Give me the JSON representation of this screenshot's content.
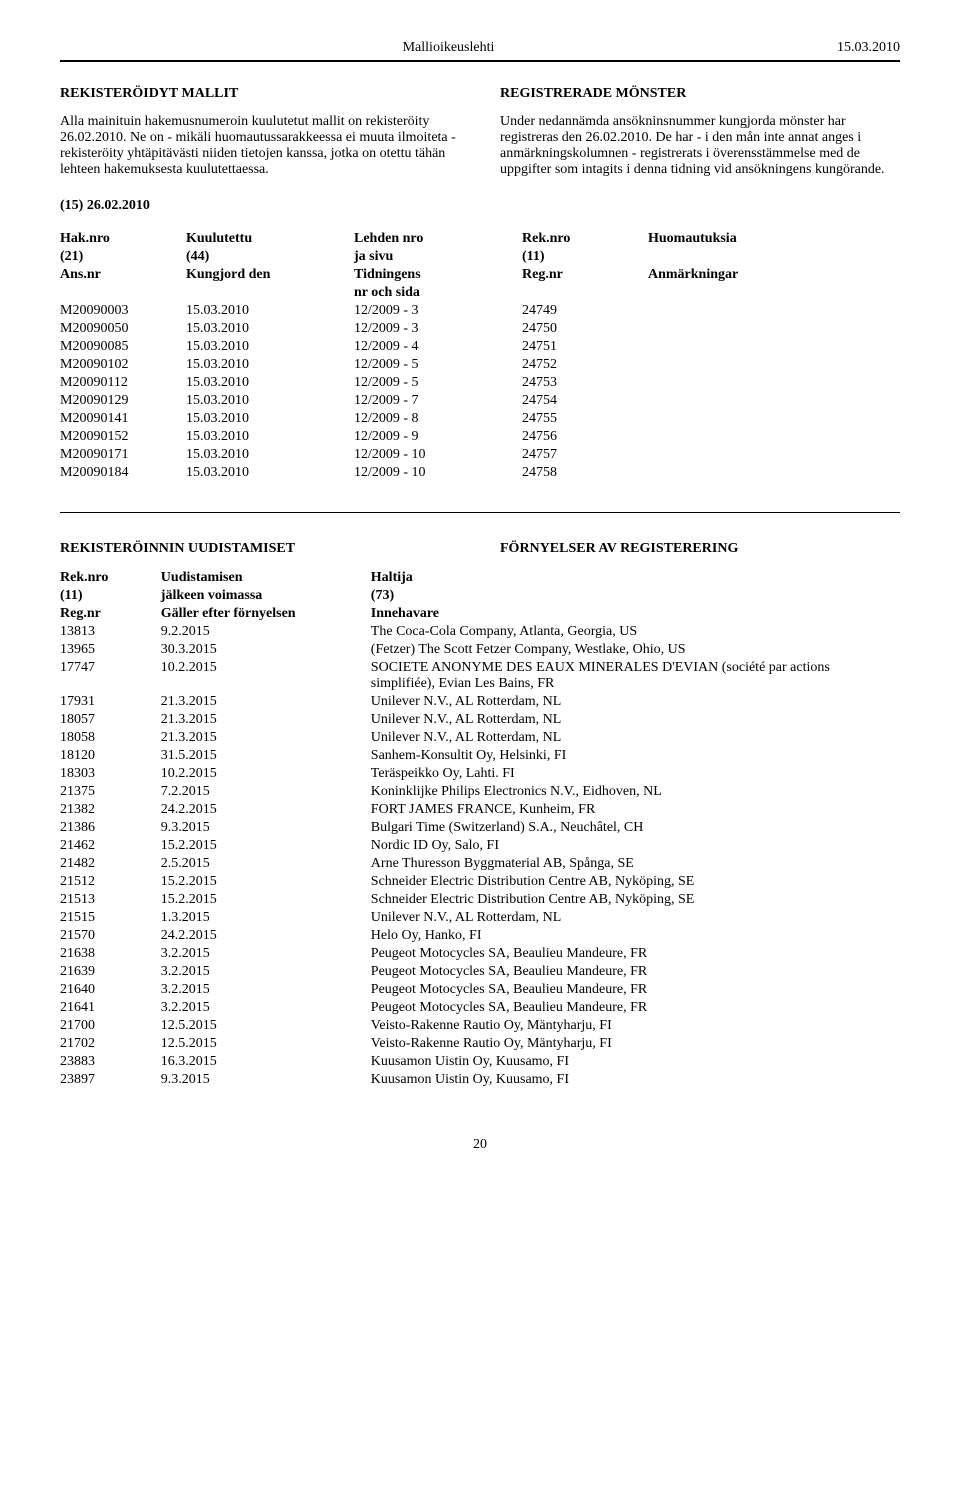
{
  "header": {
    "title": "Mallioikeuslehti",
    "date": "15.03.2010"
  },
  "left": {
    "heading": "REKISTERÖIDYT MALLIT",
    "para": "Alla mainituin hakemusnumeroin kuulutetut mallit on rekisteröity 26.02.2010. Ne on - mikäli huomautus­sarakkeessa ei muuta ilmoiteta - rekisteröity yhtä­pitävästi niiden tietojen kanssa, jotka on otettu tähän lehteen hakemuksesta kuulutettaessa."
  },
  "right": {
    "heading": "REGISTRERADE MÖNSTER",
    "para": "Under nedannämda ansökninsnummer kungjorda mönster har registreras den 26.02.2010. De har - i den mån inte annat anges i anmärkningskolumnen - registrerats i överensstämmelse med de uppgifter som intagits i denna tidning vid ansökningens kungörande."
  },
  "issue": "(15) 26.02.2010",
  "regTable": {
    "heads": {
      "hak1": "Hak.nro",
      "hak2": "(21)",
      "hak3": "Ans.nr",
      "kuul1": "Kuulutettu",
      "kuul2": "(44)",
      "kuul3": "Kungjord den",
      "leh1": "Lehden nro",
      "leh2": "ja sivu",
      "leh3": "Tidningens",
      "leh4": "nr och sida",
      "rek1": "Rek.nro",
      "rek2": "(11)",
      "rek3": "Reg.nr",
      "huom1": "Huomautuksia",
      "huom2": "",
      "huom3": "Anmärkningar"
    },
    "rows": [
      {
        "hak": "M20090003",
        "kuul": "15.03.2010",
        "leh": "12/2009 - 3",
        "rek": "24749",
        "huom": ""
      },
      {
        "hak": "M20090050",
        "kuul": "15.03.2010",
        "leh": "12/2009 - 3",
        "rek": "24750",
        "huom": ""
      },
      {
        "hak": "M20090085",
        "kuul": "15.03.2010",
        "leh": "12/2009 - 4",
        "rek": "24751",
        "huom": ""
      },
      {
        "hak": "M20090102",
        "kuul": "15.03.2010",
        "leh": "12/2009 - 5",
        "rek": "24752",
        "huom": ""
      },
      {
        "hak": "M20090112",
        "kuul": "15.03.2010",
        "leh": "12/2009 - 5",
        "rek": "24753",
        "huom": ""
      },
      {
        "hak": "M20090129",
        "kuul": "15.03.2010",
        "leh": "12/2009 - 7",
        "rek": "24754",
        "huom": ""
      },
      {
        "hak": "M20090141",
        "kuul": "15.03.2010",
        "leh": "12/2009 - 8",
        "rek": "24755",
        "huom": ""
      },
      {
        "hak": "M20090152",
        "kuul": "15.03.2010",
        "leh": "12/2009 - 9",
        "rek": "24756",
        "huom": ""
      },
      {
        "hak": "M20090171",
        "kuul": "15.03.2010",
        "leh": "12/2009 - 10",
        "rek": "24757",
        "huom": ""
      },
      {
        "hak": "M20090184",
        "kuul": "15.03.2010",
        "leh": "12/2009 - 10",
        "rek": "24758",
        "huom": ""
      }
    ]
  },
  "renewal": {
    "headingL": "REKISTERÖINNIN UUDISTAMISET",
    "headingR": "FÖRNYELSER AV REGISTERERING",
    "heads": {
      "nro1": "Rek.nro",
      "nro2": "(11)",
      "nro3": "Reg.nr",
      "uud1": "Uudistamisen",
      "uud2": "jälkeen voimassa",
      "uud3": "Gäller efter förnyelsen",
      "hal1": "Haltija",
      "hal2": "(73)",
      "hal3": "Innehavare"
    },
    "rows": [
      {
        "nro": "13813",
        "uud": "9.2.2015",
        "hal": "The Coca-Cola Company, Atlanta, Georgia, US"
      },
      {
        "nro": "13965",
        "uud": "30.3.2015",
        "hal": "(Fetzer) The Scott Fetzer Company, Westlake, Ohio, US"
      },
      {
        "nro": "17747",
        "uud": "10.2.2015",
        "hal": "SOCIETE ANONYME DES EAUX MINERALES D'EVIAN (société par actions simplifiée), Evian Les Bains, FR"
      },
      {
        "nro": "17931",
        "uud": "21.3.2015",
        "hal": "Unilever N.V., AL Rotterdam, NL"
      },
      {
        "nro": "18057",
        "uud": "21.3.2015",
        "hal": "Unilever N.V., AL Rotterdam, NL"
      },
      {
        "nro": "18058",
        "uud": "21.3.2015",
        "hal": "Unilever N.V., AL Rotterdam, NL"
      },
      {
        "nro": "18120",
        "uud": "31.5.2015",
        "hal": "Sanhem-Konsultit Oy, Helsinki, FI"
      },
      {
        "nro": "18303",
        "uud": "10.2.2015",
        "hal": "Teräspeikko Oy, Lahti. FI"
      },
      {
        "nro": "21375",
        "uud": "7.2.2015",
        "hal": "Koninklijke Philips Electronics N.V., Eidhoven, NL"
      },
      {
        "nro": "21382",
        "uud": "24.2.2015",
        "hal": "FORT JAMES FRANCE, Kunheim, FR"
      },
      {
        "nro": "21386",
        "uud": "9.3.2015",
        "hal": "Bulgari Time (Switzerland) S.A., Neuchâtel, CH"
      },
      {
        "nro": "21462",
        "uud": "15.2.2015",
        "hal": "Nordic ID Oy, Salo, FI"
      },
      {
        "nro": "21482",
        "uud": "2.5.2015",
        "hal": "Arne Thuresson Byggmaterial AB, Spånga, SE"
      },
      {
        "nro": "21512",
        "uud": "15.2.2015",
        "hal": "Schneider Electric Distribution Centre AB, Nyköping, SE"
      },
      {
        "nro": "21513",
        "uud": "15.2.2015",
        "hal": "Schneider Electric Distribution Centre AB, Nyköping, SE"
      },
      {
        "nro": "21515",
        "uud": "1.3.2015",
        "hal": "Unilever N.V., AL Rotterdam, NL"
      },
      {
        "nro": "21570",
        "uud": "24.2.2015",
        "hal": "Helo Oy, Hanko, FI"
      },
      {
        "nro": "21638",
        "uud": "3.2.2015",
        "hal": "Peugeot Motocycles SA, Beaulieu Mandeure, FR"
      },
      {
        "nro": "21639",
        "uud": "3.2.2015",
        "hal": "Peugeot Motocycles SA, Beaulieu Mandeure, FR"
      },
      {
        "nro": "21640",
        "uud": "3.2.2015",
        "hal": "Peugeot Motocycles SA, Beaulieu Mandeure, FR"
      },
      {
        "nro": "21641",
        "uud": "3.2.2015",
        "hal": "Peugeot Motocycles SA, Beaulieu Mandeure, FR"
      },
      {
        "nro": "21700",
        "uud": "12.5.2015",
        "hal": "Veisto-Rakenne Rautio Oy, Mäntyharju, FI"
      },
      {
        "nro": "21702",
        "uud": "12.5.2015",
        "hal": "Veisto-Rakenne Rautio Oy, Mäntyharju, FI"
      },
      {
        "nro": "23883",
        "uud": "16.3.2015",
        "hal": "Kuusamon Uistin Oy, Kuusamo, FI"
      },
      {
        "nro": "23897",
        "uud": "9.3.2015",
        "hal": "Kuusamon Uistin Oy, Kuusamo, FI"
      }
    ]
  },
  "pageNum": "20"
}
